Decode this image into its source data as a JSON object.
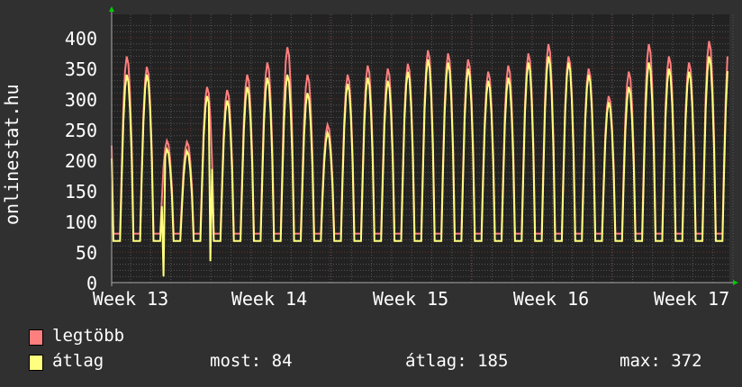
{
  "chart_data": {
    "type": "line",
    "ylabel": "onlinestat.hu",
    "ylim": [
      0,
      400
    ],
    "yticks": [
      "0",
      "50",
      "100",
      "150",
      "200",
      "250",
      "300",
      "350",
      "400"
    ],
    "xticks": [
      "Week 13",
      "Week 14",
      "Week 15",
      "Week 16",
      "Week 17"
    ],
    "x_unit": "days",
    "grid": true,
    "colors": {
      "legtobb": "#ff7f7f",
      "atlag": "#ffff7f",
      "background": "#222222",
      "canvas": "#303030",
      "grid_major": "#6a3030",
      "grid_minor": "#555555",
      "arrow": "#00cc00"
    },
    "daily_peaks": {
      "legtobb": [
        370,
        353,
        232,
        230,
        320,
        315,
        340,
        360,
        385,
        340,
        258,
        340,
        355,
        350,
        358,
        380,
        375,
        365,
        345,
        355,
        375,
        390,
        370,
        350,
        305,
        345,
        390,
        370,
        360,
        395
      ],
      "atlag": [
        340,
        340,
        218,
        215,
        305,
        298,
        320,
        335,
        340,
        310,
        245,
        325,
        335,
        330,
        345,
        365,
        360,
        350,
        330,
        335,
        360,
        370,
        360,
        340,
        295,
        320,
        360,
        350,
        345,
        370
      ]
    },
    "daily_troughs": {
      "legtobb": 80,
      "atlag": 68
    },
    "dips": [
      {
        "series": "atlag",
        "day": 2.6,
        "value": 10
      },
      {
        "series": "atlag",
        "day": 4.9,
        "value": 35
      }
    ],
    "series": [
      {
        "name": "legtöbb"
      },
      {
        "name": "átlag",
        "most": "84",
        "atlag": "185",
        "max": "372"
      }
    ]
  },
  "legend": {
    "item1": "legtöbb",
    "item2": "átlag",
    "most": "most: 84",
    "atlag": "átlag: 185",
    "max": "max: 372"
  }
}
